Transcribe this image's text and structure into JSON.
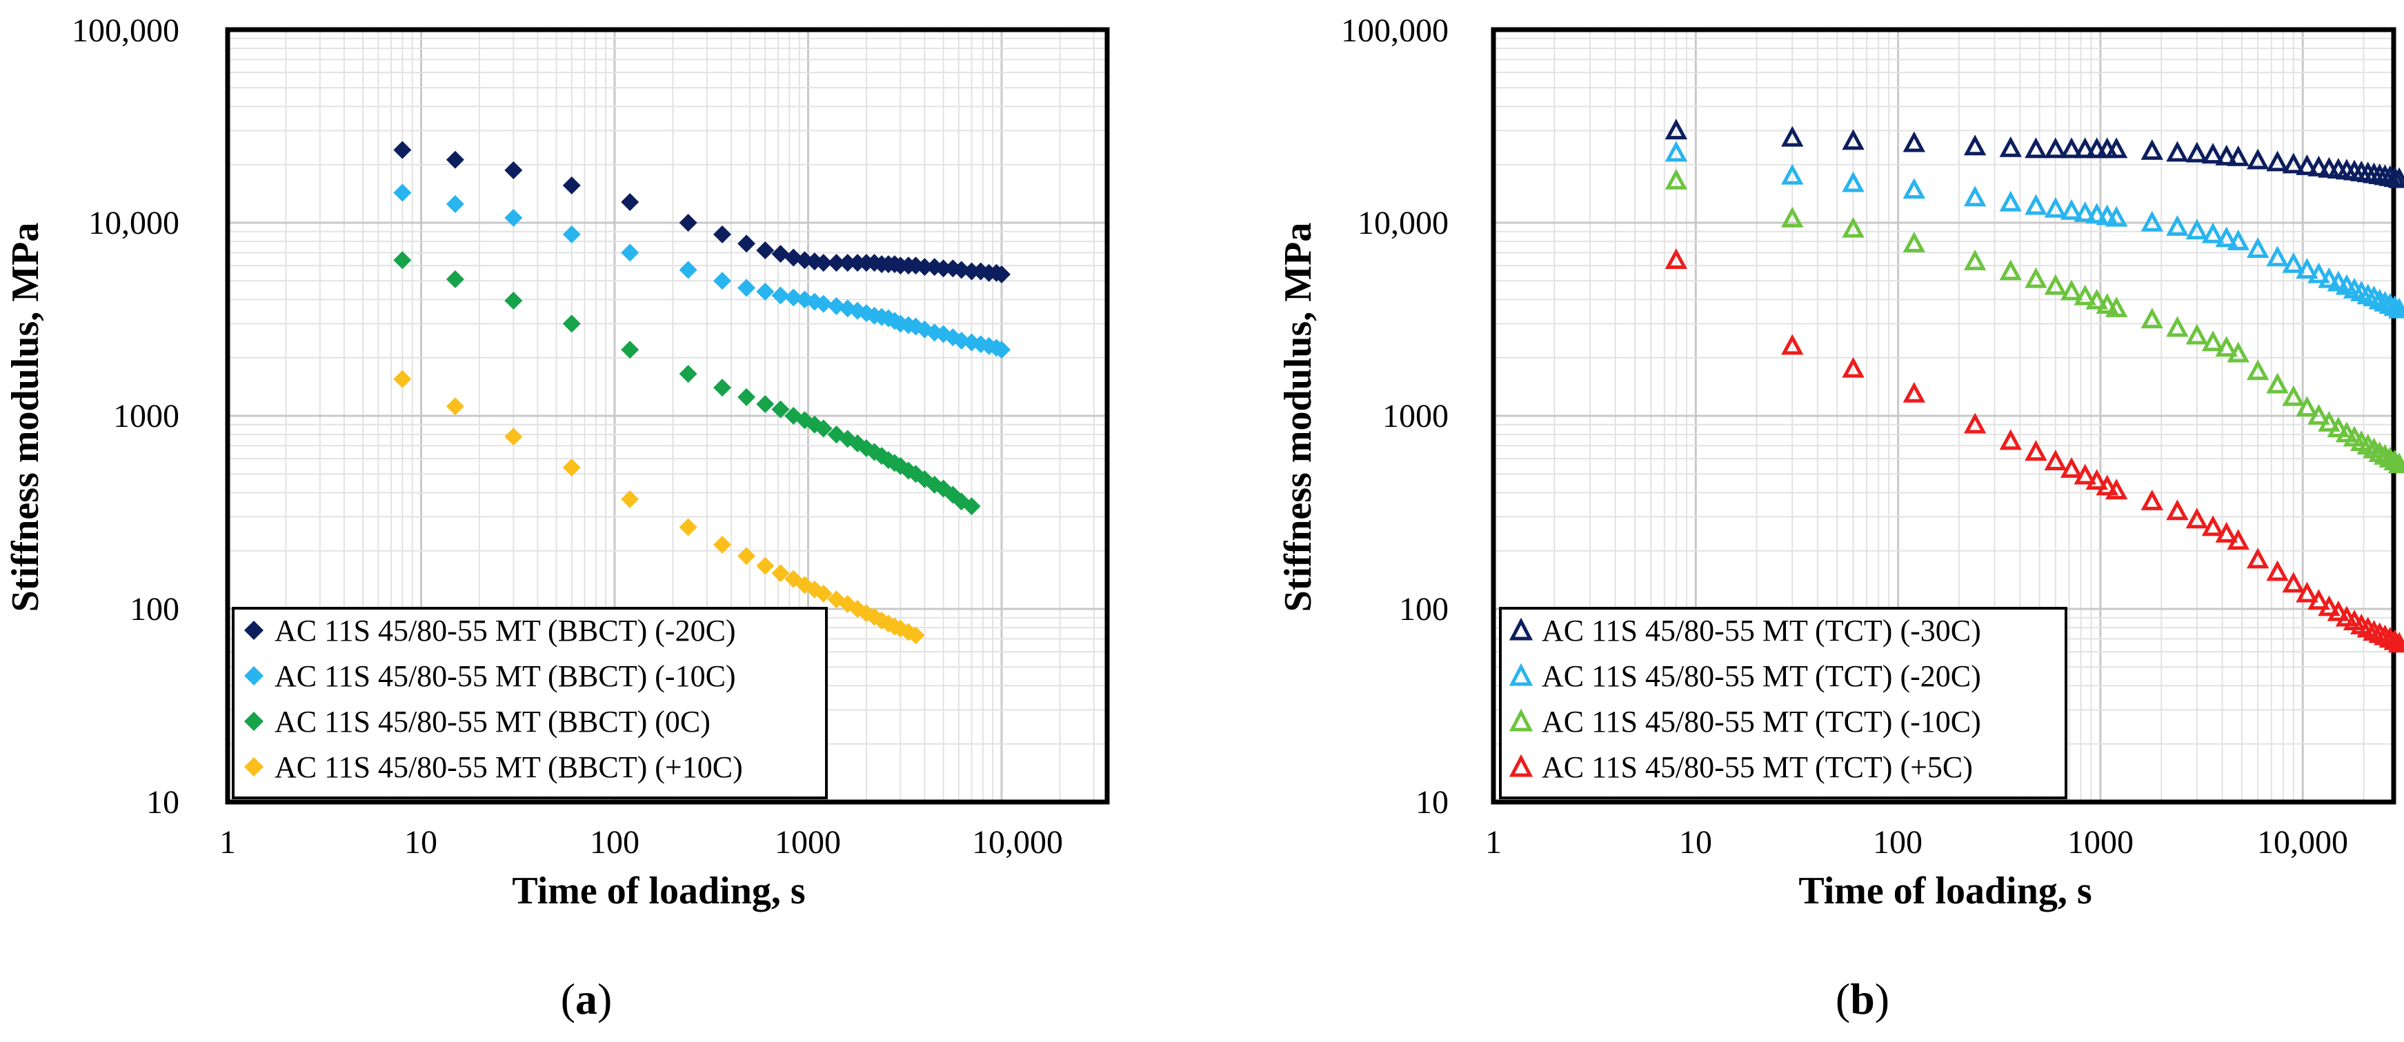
{
  "chart_data": [
    {
      "type": "scatter",
      "panel_label": "a",
      "xlabel": "Time of loading, s",
      "ylabel": "Stiffness modulus, MPa",
      "x_scale": "log",
      "y_scale": "log",
      "xlim": [
        1,
        40000
      ],
      "ylim": [
        10,
        100000
      ],
      "xticks": [
        1,
        10,
        100,
        1000,
        10000
      ],
      "xtick_labels": [
        "1",
        "10",
        "100",
        "1000",
        "10,000"
      ],
      "yticks": [
        10,
        100,
        1000,
        10000,
        100000
      ],
      "ytick_labels": [
        "10",
        "100",
        "1000",
        "10,000",
        "100,000"
      ],
      "grid": true,
      "legend_position": "bottom-left",
      "marker": "diamond",
      "series": [
        {
          "name": "AC 11S 45/80-55 MT (BBCT) (-20C)",
          "color": "#0d1e5e",
          "x": [
            8,
            15,
            30,
            60,
            120,
            240,
            360,
            480,
            600,
            720,
            840,
            960,
            1080,
            1200,
            1400,
            1600,
            1800,
            2000,
            2200,
            2400,
            2600,
            2800,
            3000,
            3300,
            3600,
            4000,
            4500,
            5000,
            5600,
            6200,
            7000,
            7800,
            8600,
            9400,
            10000
          ],
          "y": [
            23800,
            21200,
            18700,
            15600,
            12800,
            10000,
            8700,
            7800,
            7200,
            6900,
            6600,
            6400,
            6300,
            6200,
            6200,
            6200,
            6200,
            6200,
            6200,
            6100,
            6100,
            6100,
            6000,
            6000,
            6000,
            5900,
            5900,
            5800,
            5800,
            5700,
            5600,
            5600,
            5500,
            5500,
            5400
          ]
        },
        {
          "name": "AC 11S 45/80-55 MT (BBCT) (-10C)",
          "color": "#28b4ef",
          "x": [
            8,
            15,
            30,
            60,
            120,
            240,
            360,
            480,
            600,
            720,
            840,
            960,
            1080,
            1200,
            1400,
            1600,
            1800,
            2000,
            2200,
            2400,
            2600,
            2800,
            3000,
            3300,
            3600,
            4000,
            4500,
            5000,
            5600,
            6200,
            7000,
            7800,
            8600,
            9400,
            10000
          ],
          "y": [
            14300,
            12500,
            10600,
            8700,
            7000,
            5700,
            5000,
            4600,
            4400,
            4200,
            4100,
            4000,
            3900,
            3800,
            3700,
            3600,
            3500,
            3400,
            3300,
            3250,
            3200,
            3100,
            3000,
            2950,
            2900,
            2800,
            2700,
            2650,
            2550,
            2450,
            2400,
            2350,
            2300,
            2250,
            2200
          ]
        },
        {
          "name": "AC 11S 45/80-55 MT (BBCT) (0C)",
          "color": "#16a34a",
          "x": [
            8,
            15,
            30,
            60,
            120,
            240,
            360,
            480,
            600,
            720,
            840,
            960,
            1080,
            1200,
            1400,
            1600,
            1800,
            2000,
            2200,
            2400,
            2600,
            2800,
            3000,
            3300,
            3600,
            4000,
            4500,
            5000,
            5600,
            6200,
            7000
          ],
          "y": [
            6400,
            5100,
            3950,
            3000,
            2200,
            1650,
            1400,
            1250,
            1150,
            1080,
            1000,
            950,
            900,
            860,
            800,
            760,
            720,
            680,
            650,
            620,
            590,
            570,
            550,
            520,
            500,
            470,
            440,
            420,
            390,
            360,
            340
          ]
        },
        {
          "name": "AC 11S 45/80-55 MT (BBCT) (+10C)",
          "color": "#fbbf1c",
          "x": [
            8,
            15,
            30,
            60,
            120,
            240,
            360,
            480,
            600,
            720,
            840,
            960,
            1080,
            1200,
            1400,
            1600,
            1800,
            2000,
            2200,
            2400,
            2600,
            2800,
            3000,
            3300,
            3600
          ],
          "y": [
            1550,
            1120,
            780,
            540,
            370,
            265,
            215,
            188,
            167,
            153,
            143,
            133,
            126,
            120,
            112,
            106,
            100,
            95,
            91,
            87,
            84,
            81,
            79,
            76,
            73
          ]
        }
      ]
    },
    {
      "type": "scatter",
      "panel_label": "b",
      "xlabel": "Time of loading, s",
      "ylabel": "Stiffness modulus, MPa",
      "x_scale": "log",
      "y_scale": "log",
      "xlim": [
        1,
        30000
      ],
      "ylim": [
        10,
        100000
      ],
      "xticks": [
        1,
        10,
        100,
        1000,
        10000
      ],
      "xtick_labels": [
        "1",
        "10",
        "100",
        "1000",
        "10,000"
      ],
      "yticks": [
        10,
        100,
        1000,
        10000,
        100000
      ],
      "ytick_labels": [
        "10",
        "100",
        "1000",
        "10,000",
        "100,000"
      ],
      "grid": true,
      "legend_position": "bottom-left",
      "marker": "open-triangle",
      "series": [
        {
          "name": "AC 11S 45/80-55 MT (TCT) (-30C)",
          "color": "#0d1e5e",
          "x": [
            8,
            30,
            60,
            120,
            240,
            360,
            480,
            600,
            720,
            840,
            960,
            1080,
            1200,
            1800,
            2400,
            3000,
            3600,
            4200,
            4800,
            6000,
            7500,
            9000,
            10500,
            12000,
            13500,
            15000,
            16500,
            18000,
            19500,
            21000,
            22500,
            24000,
            25500,
            27000,
            28500,
            30000
          ],
          "y": [
            30000,
            27500,
            26500,
            25800,
            24800,
            24300,
            24000,
            24000,
            24000,
            24000,
            24000,
            24000,
            24000,
            23500,
            23000,
            22800,
            22500,
            22000,
            21800,
            21000,
            20500,
            20000,
            19600,
            19300,
            19000,
            18800,
            18600,
            18400,
            18200,
            18000,
            17800,
            17600,
            17400,
            17200,
            17000,
            16800
          ]
        },
        {
          "name": "AC 11S 45/80-55 MT (TCT) (-20C)",
          "color": "#28b4ef",
          "x": [
            8,
            30,
            60,
            120,
            240,
            360,
            480,
            600,
            720,
            840,
            960,
            1080,
            1200,
            1800,
            2400,
            3000,
            3600,
            4200,
            4800,
            6000,
            7500,
            9000,
            10500,
            12000,
            13500,
            15000,
            16500,
            18000,
            19500,
            21000,
            22500,
            24000,
            25500,
            27000,
            28500,
            30000
          ],
          "y": [
            23000,
            17500,
            16000,
            14800,
            13500,
            12700,
            12200,
            11800,
            11500,
            11200,
            11000,
            10800,
            10600,
            10000,
            9500,
            9100,
            8700,
            8300,
            8000,
            7300,
            6600,
            6100,
            5700,
            5400,
            5100,
            4900,
            4700,
            4500,
            4350,
            4200,
            4100,
            3950,
            3850,
            3750,
            3650,
            3550
          ]
        },
        {
          "name": "AC 11S 45/80-55 MT (TCT) (-10C)",
          "color": "#6cc43e",
          "x": [
            8,
            30,
            60,
            120,
            240,
            360,
            480,
            600,
            720,
            840,
            960,
            1080,
            1200,
            1800,
            2400,
            3000,
            3600,
            4200,
            4800,
            6000,
            7500,
            9000,
            10500,
            12000,
            13500,
            15000,
            16500,
            18000,
            19500,
            21000,
            22500,
            24000,
            25500,
            27000,
            28500,
            30000
          ],
          "y": [
            16500,
            10500,
            9300,
            7800,
            6300,
            5600,
            5100,
            4700,
            4400,
            4150,
            3950,
            3750,
            3600,
            3150,
            2850,
            2600,
            2400,
            2250,
            2100,
            1700,
            1450,
            1250,
            1100,
            1000,
            920,
            860,
            810,
            770,
            730,
            700,
            670,
            640,
            620,
            600,
            580,
            560
          ]
        },
        {
          "name": "AC 11S 45/80-55 MT (TCT) (+5C)",
          "color": "#ee1c1c",
          "x": [
            8,
            30,
            60,
            120,
            240,
            360,
            480,
            600,
            720,
            840,
            960,
            1080,
            1200,
            1800,
            2400,
            3000,
            3600,
            4200,
            4800,
            6000,
            7500,
            9000,
            10500,
            12000,
            13500,
            15000,
            16500,
            18000,
            19500,
            21000,
            22500,
            24000,
            25500,
            27000,
            28500,
            30000
          ],
          "y": [
            6400,
            2300,
            1750,
            1300,
            900,
            740,
            650,
            580,
            530,
            490,
            460,
            430,
            410,
            360,
            320,
            290,
            265,
            245,
            225,
            180,
            155,
            135,
            120,
            110,
            102,
            96,
            90,
            86,
            82,
            79,
            76,
            74,
            72,
            70,
            68,
            66
          ]
        }
      ]
    }
  ]
}
